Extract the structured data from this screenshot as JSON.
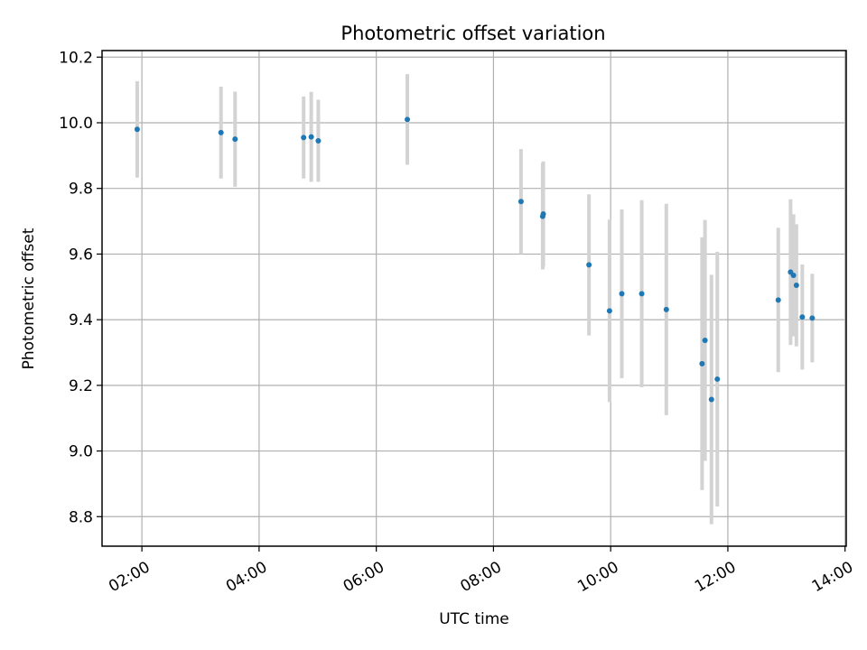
{
  "chart_data": {
    "type": "scatter",
    "title": "Photometric offset variation",
    "xlabel": "UTC time",
    "ylabel": "Photometric offset",
    "x_unit": "hours (UTC)",
    "xlim": [
      1.32,
      14.02
    ],
    "ylim": [
      8.71,
      10.22
    ],
    "grid": true,
    "x_ticks": [
      {
        "value": 2,
        "label": "02:00"
      },
      {
        "value": 4,
        "label": "04:00"
      },
      {
        "value": 6,
        "label": "06:00"
      },
      {
        "value": 8,
        "label": "08:00"
      },
      {
        "value": 10,
        "label": "10:00"
      },
      {
        "value": 12,
        "label": "12:00"
      },
      {
        "value": 14,
        "label": "14:00"
      }
    ],
    "y_ticks": [
      {
        "value": 8.8,
        "label": "8.8"
      },
      {
        "value": 9.0,
        "label": "9.0"
      },
      {
        "value": 9.2,
        "label": "9.2"
      },
      {
        "value": 9.4,
        "label": "9.4"
      },
      {
        "value": 9.6,
        "label": "9.6"
      },
      {
        "value": 9.8,
        "label": "9.8"
      },
      {
        "value": 10.0,
        "label": "10.0"
      },
      {
        "value": 10.2,
        "label": "10.2"
      }
    ],
    "colors": {
      "point": "#1f77b4",
      "errorbar": "#d3d3d3",
      "grid": "#b0b0b0"
    },
    "series": [
      {
        "points": [
          {
            "x": 1.92,
            "y": 9.98,
            "err": 0.147
          },
          {
            "x": 3.35,
            "y": 9.97,
            "err": 0.14
          },
          {
            "x": 3.59,
            "y": 9.95,
            "err": 0.145
          },
          {
            "x": 4.76,
            "y": 9.955,
            "err": 0.125
          },
          {
            "x": 4.89,
            "y": 9.957,
            "err": 0.137
          },
          {
            "x": 5.01,
            "y": 9.945,
            "err": 0.125
          },
          {
            "x": 6.53,
            "y": 10.01,
            "err": 0.138
          },
          {
            "x": 8.47,
            "y": 9.76,
            "err": 0.16
          },
          {
            "x": 8.84,
            "y": 9.715,
            "err": 0.162
          },
          {
            "x": 8.85,
            "y": 9.722,
            "err": 0.16
          },
          {
            "x": 9.63,
            "y": 9.567,
            "err": 0.215
          },
          {
            "x": 9.98,
            "y": 9.427,
            "err": 0.278
          },
          {
            "x": 10.19,
            "y": 9.479,
            "err": 0.257
          },
          {
            "x": 10.53,
            "y": 9.479,
            "err": 0.285
          },
          {
            "x": 10.95,
            "y": 9.431,
            "err": 0.322
          },
          {
            "x": 11.56,
            "y": 9.266,
            "err": 0.385
          },
          {
            "x": 11.61,
            "y": 9.337,
            "err": 0.367
          },
          {
            "x": 11.72,
            "y": 9.157,
            "err": 0.38
          },
          {
            "x": 11.82,
            "y": 9.219,
            "err": 0.388
          },
          {
            "x": 12.86,
            "y": 9.46,
            "err": 0.22
          },
          {
            "x": 13.07,
            "y": 9.545,
            "err": 0.222
          },
          {
            "x": 13.12,
            "y": 9.535,
            "err": 0.186
          },
          {
            "x": 13.17,
            "y": 9.505,
            "err": 0.186
          },
          {
            "x": 13.27,
            "y": 9.408,
            "err": 0.16
          },
          {
            "x": 13.44,
            "y": 9.405,
            "err": 0.135
          }
        ]
      }
    ]
  }
}
